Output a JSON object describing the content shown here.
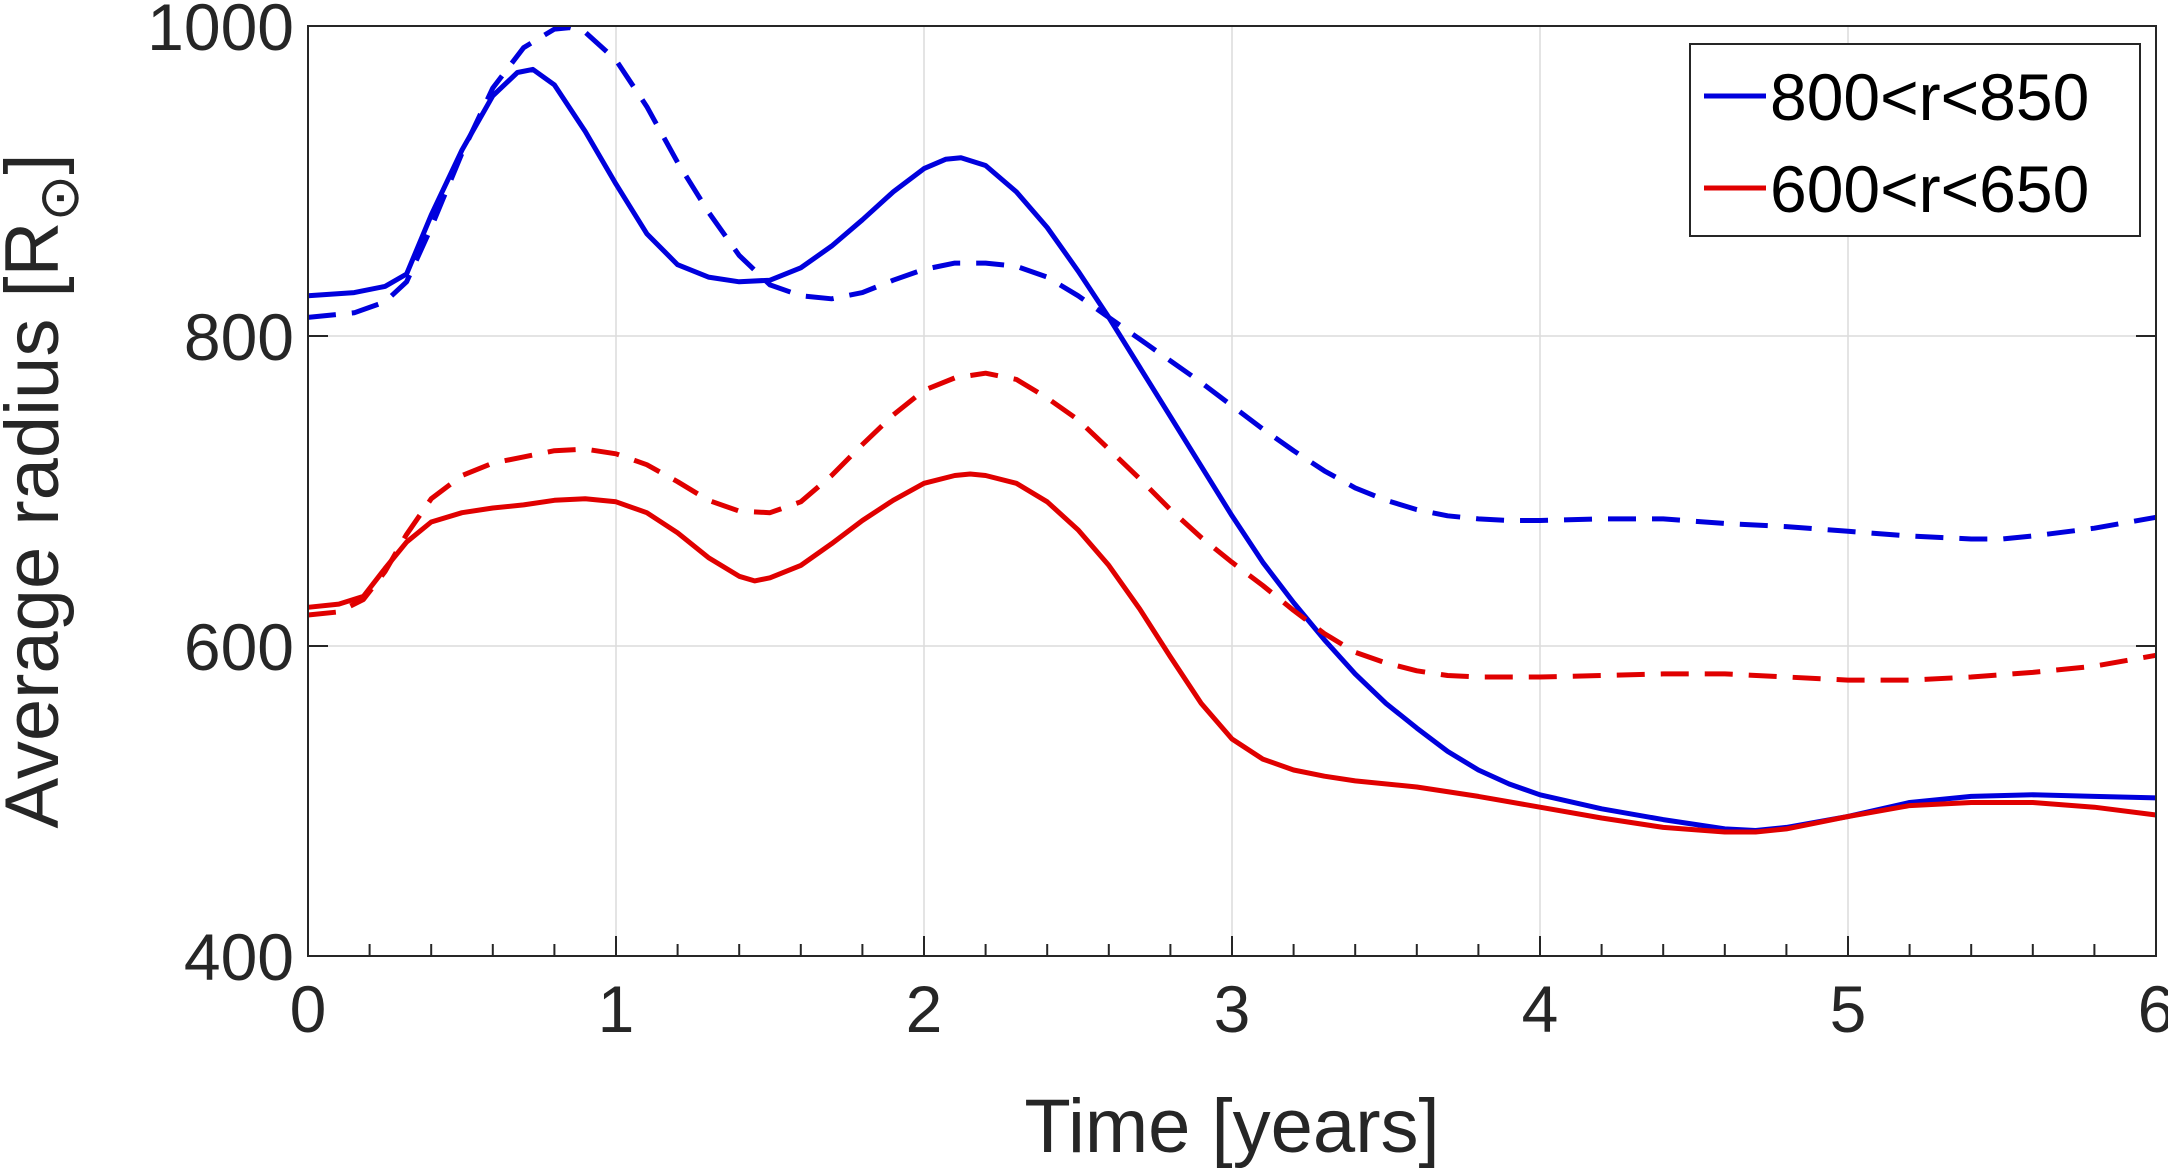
{
  "chart_data": {
    "type": "line",
    "title": "",
    "xlabel": "Time [years]",
    "ylabel_main": "Average radius [R",
    "ylabel_symbol": "⊙",
    "ylabel_close": "]",
    "xlim": [
      0,
      6
    ],
    "ylim": [
      400,
      1000
    ],
    "xticks": [
      0,
      1,
      2,
      3,
      4,
      5,
      6
    ],
    "yticks": [
      400,
      600,
      800,
      1000
    ],
    "xtick_labels": [
      "0",
      "1",
      "2",
      "3",
      "4",
      "5",
      "6"
    ],
    "ytick_labels": [
      "400",
      "600",
      "800",
      "1000"
    ],
    "grid": true,
    "legend_position": "top-right",
    "legend": [
      {
        "label": "800<r<850",
        "color": "#0000dd"
      },
      {
        "label": "600<r<650",
        "color": "#e00000"
      }
    ],
    "series": [
      {
        "name": "800<r<850 (solid)",
        "color": "#0000dd",
        "style": "solid",
        "x": [
          0,
          0.15,
          0.25,
          0.32,
          0.4,
          0.5,
          0.6,
          0.68,
          0.73,
          0.8,
          0.9,
          1.0,
          1.1,
          1.2,
          1.3,
          1.4,
          1.5,
          1.6,
          1.7,
          1.8,
          1.9,
          2.0,
          2.07,
          2.12,
          2.2,
          2.3,
          2.4,
          2.5,
          2.6,
          2.7,
          2.8,
          2.9,
          3.0,
          3.1,
          3.2,
          3.3,
          3.4,
          3.5,
          3.6,
          3.7,
          3.8,
          3.9,
          4.0,
          4.2,
          4.4,
          4.6,
          4.7,
          4.8,
          5.0,
          5.2,
          5.4,
          5.6,
          5.8,
          6.0
        ],
        "y": [
          826,
          828,
          832,
          840,
          878,
          920,
          955,
          970,
          972,
          962,
          932,
          898,
          866,
          846,
          838,
          835,
          836,
          844,
          858,
          875,
          893,
          908,
          914,
          915,
          910,
          893,
          870,
          842,
          812,
          780,
          748,
          716,
          684,
          654,
          628,
          604,
          582,
          563,
          547,
          532,
          520,
          511,
          504,
          495,
          488,
          482,
          481,
          483,
          490,
          499,
          503,
          504,
          503,
          502
        ]
      },
      {
        "name": "800<r<850 (dashed)",
        "color": "#0000dd",
        "style": "dashed",
        "x": [
          0,
          0.15,
          0.25,
          0.32,
          0.4,
          0.5,
          0.6,
          0.7,
          0.8,
          0.85,
          0.9,
          1.0,
          1.1,
          1.2,
          1.3,
          1.4,
          1.5,
          1.6,
          1.7,
          1.8,
          1.9,
          2.0,
          2.1,
          2.2,
          2.3,
          2.4,
          2.5,
          2.6,
          2.7,
          2.8,
          2.9,
          3.0,
          3.1,
          3.2,
          3.3,
          3.4,
          3.5,
          3.6,
          3.7,
          3.8,
          3.9,
          4.0,
          4.2,
          4.4,
          4.6,
          4.8,
          5.0,
          5.2,
          5.4,
          5.5,
          5.6,
          5.8,
          6.0
        ],
        "y": [
          812,
          815,
          822,
          835,
          870,
          918,
          960,
          986,
          998,
          999,
          996,
          978,
          948,
          912,
          880,
          852,
          833,
          826,
          824,
          828,
          836,
          843,
          847,
          847,
          845,
          838,
          826,
          812,
          798,
          784,
          770,
          755,
          740,
          726,
          713,
          702,
          694,
          688,
          684,
          682,
          681,
          681,
          682,
          682,
          679,
          677,
          674,
          671,
          669,
          669,
          671,
          676,
          683
        ]
      },
      {
        "name": "600<r<650 (solid)",
        "color": "#e00000",
        "style": "solid",
        "x": [
          0,
          0.1,
          0.18,
          0.25,
          0.32,
          0.4,
          0.5,
          0.6,
          0.7,
          0.8,
          0.9,
          1.0,
          1.1,
          1.2,
          1.3,
          1.4,
          1.45,
          1.5,
          1.6,
          1.7,
          1.8,
          1.9,
          2.0,
          2.1,
          2.15,
          2.2,
          2.3,
          2.4,
          2.5,
          2.6,
          2.7,
          2.8,
          2.9,
          3.0,
          3.1,
          3.2,
          3.3,
          3.4,
          3.6,
          3.8,
          4.0,
          4.2,
          4.4,
          4.6,
          4.7,
          4.8,
          5.0,
          5.2,
          5.4,
          5.6,
          5.8,
          6.0
        ],
        "y": [
          625,
          627,
          632,
          650,
          667,
          680,
          686,
          689,
          691,
          694,
          695,
          693,
          686,
          673,
          657,
          645,
          642,
          644,
          652,
          666,
          681,
          694,
          705,
          710,
          711,
          710,
          705,
          693,
          675,
          652,
          624,
          593,
          563,
          540,
          527,
          520,
          516,
          513,
          509,
          503,
          496,
          489,
          483,
          480,
          480,
          482,
          490,
          497,
          499,
          499,
          496,
          491
        ]
      },
      {
        "name": "600<r<650 (dashed)",
        "color": "#e00000",
        "style": "dashed",
        "x": [
          0,
          0.1,
          0.18,
          0.25,
          0.32,
          0.4,
          0.5,
          0.6,
          0.7,
          0.8,
          0.9,
          1.0,
          1.1,
          1.2,
          1.3,
          1.4,
          1.5,
          1.6,
          1.7,
          1.8,
          1.9,
          2.0,
          2.1,
          2.2,
          2.3,
          2.4,
          2.5,
          2.6,
          2.7,
          2.8,
          2.9,
          3.0,
          3.1,
          3.2,
          3.3,
          3.4,
          3.5,
          3.6,
          3.7,
          3.8,
          3.9,
          4.0,
          4.2,
          4.4,
          4.6,
          4.8,
          5.0,
          5.2,
          5.4,
          5.6,
          5.8,
          6.0
        ],
        "y": [
          620,
          622,
          630,
          648,
          672,
          695,
          710,
          718,
          722,
          726,
          727,
          724,
          717,
          706,
          694,
          687,
          686,
          693,
          710,
          730,
          749,
          765,
          773,
          776,
          772,
          760,
          746,
          727,
          708,
          688,
          670,
          654,
          639,
          623,
          608,
          596,
          589,
          584,
          581,
          580,
          580,
          580,
          581,
          582,
          582,
          580,
          578,
          578,
          580,
          583,
          587,
          594
        ]
      }
    ]
  }
}
